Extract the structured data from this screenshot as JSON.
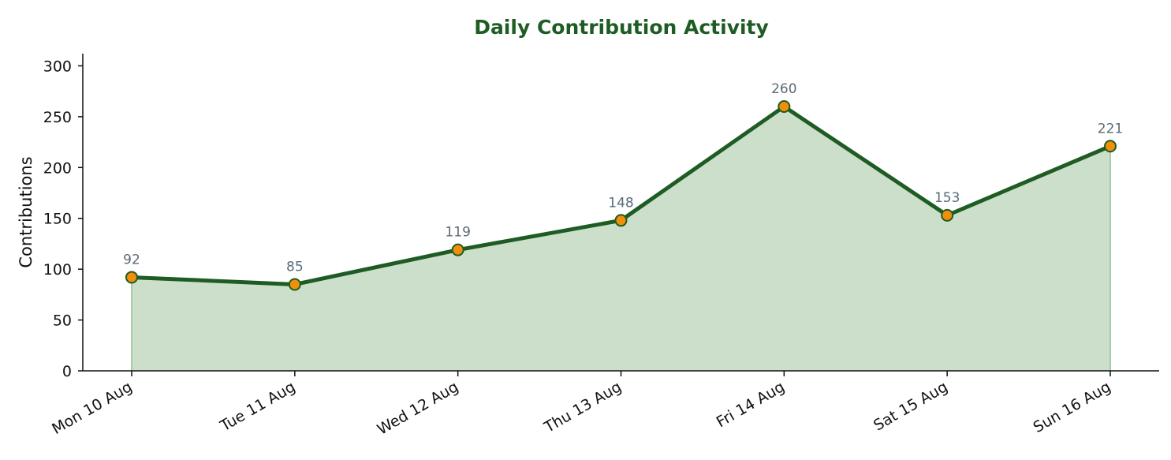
{
  "chart_data": {
    "type": "area",
    "title": "Daily Contribution Activity",
    "xlabel": "",
    "ylabel": "Contributions",
    "categories": [
      "Mon 10 Aug",
      "Tue 11 Aug",
      "Wed 12 Aug",
      "Thu 13 Aug",
      "Fri 14 Aug",
      "Sat 15 Aug",
      "Sun 16 Aug"
    ],
    "series": [
      {
        "values": [
          92,
          85,
          119,
          148,
          260,
          153,
          221
        ]
      }
    ],
    "data_labels": [
      "92",
      "85",
      "119",
      "148",
      "260",
      "153",
      "221"
    ],
    "ylim": [
      0,
      312
    ],
    "yticks": [
      0,
      50,
      100,
      150,
      200,
      250,
      300
    ],
    "ytick_labels": [
      "0",
      "50",
      "100",
      "150",
      "200",
      "250",
      "300"
    ],
    "grid": false,
    "legend": "none",
    "colors": {
      "title": "#1e5c24",
      "line": "#1e5c24",
      "fill": "#ccdfcb",
      "marker_fill": "#f18f0a",
      "marker_edge": "#1e5c24",
      "axis": "#111111",
      "data_label": "#5a6b78"
    }
  }
}
